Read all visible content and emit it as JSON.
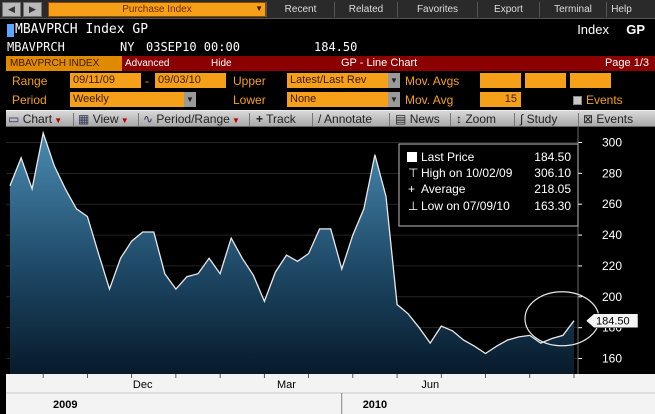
{
  "menubar": {
    "search_value": "Purchase Index",
    "items": [
      "Recent",
      "Related",
      "Favorites",
      "Export",
      "Terminal",
      "Help"
    ]
  },
  "header": {
    "ticker": "MBAVPRCH Index GP",
    "index_gp_label": "Index",
    "gp_label": "GP",
    "security": "MBAVPRCH",
    "exchange": "NY",
    "date_time": "03SEP10 00:00",
    "last_value": "184.50"
  },
  "titlebar": {
    "tag": "MBAVPRCH INDEX",
    "advanced": "Advanced",
    "hide": "Hide",
    "title": "GP - Line Chart",
    "page": "Page 1/3"
  },
  "controls": {
    "range_label": "Range",
    "range_start": "09/11/09",
    "range_dash": "-",
    "range_end": "09/03/10",
    "upper_label": "Upper",
    "upper_value": "Latest/Last Rev",
    "mov_avgs_label": "Mov. Avgs",
    "period_label": "Period",
    "period_value": "Weekly",
    "lower_label": "Lower",
    "lower_value": "None",
    "mov_avg_label": "Mov. Avg",
    "mov_avg_value": "15",
    "events_label": "Events"
  },
  "toolbar": {
    "chart": "Chart",
    "view": "View",
    "period_range": "Period/Range",
    "track": "Track",
    "annotate": "Annotate",
    "news": "News",
    "zoom": "Zoom",
    "study": "Study",
    "events": "Events"
  },
  "legend": {
    "last_price_label": "Last Price",
    "last_price_value": "184.50",
    "high_label": "High on 10/02/09",
    "high_value": "306.10",
    "average_label": "Average",
    "average_value": "218.05",
    "low_label": "Low on 07/09/10",
    "low_value": "163.30"
  },
  "colors": {
    "accent_orange": "#f6a01a",
    "title_red": "#8b0000",
    "area_top": "#3d7fa6",
    "area_bottom": "#061826",
    "axis_bar": "#f7f7f7"
  },
  "chart_data": {
    "type": "area",
    "series": [
      {
        "name": "Last Price",
        "values": [
          272,
          290,
          270,
          306.1,
          285,
          270,
          257,
          252,
          228,
          205,
          225,
          236,
          242,
          242,
          215,
          205,
          213,
          215,
          225,
          215,
          238,
          225,
          214,
          197,
          216,
          227,
          223,
          228,
          244,
          244,
          218,
          240,
          257,
          292,
          265,
          195,
          189,
          180,
          170,
          181,
          178,
          172,
          168,
          163.3,
          168,
          172,
          174,
          175,
          170,
          173,
          175,
          184.5
        ]
      }
    ],
    "ylim": [
      150,
      310
    ],
    "yticks": [
      160,
      180,
      200,
      220,
      240,
      260,
      280,
      300
    ],
    "x_labels": [
      {
        "label": "Dec",
        "index": 12
      },
      {
        "label": "Mar",
        "index": 25
      },
      {
        "label": "Jun",
        "index": 38
      }
    ],
    "year_labels": [
      {
        "label": "2009",
        "index": 5
      },
      {
        "label": "2010",
        "index": 33
      }
    ],
    "last_price_label": "184.50"
  }
}
